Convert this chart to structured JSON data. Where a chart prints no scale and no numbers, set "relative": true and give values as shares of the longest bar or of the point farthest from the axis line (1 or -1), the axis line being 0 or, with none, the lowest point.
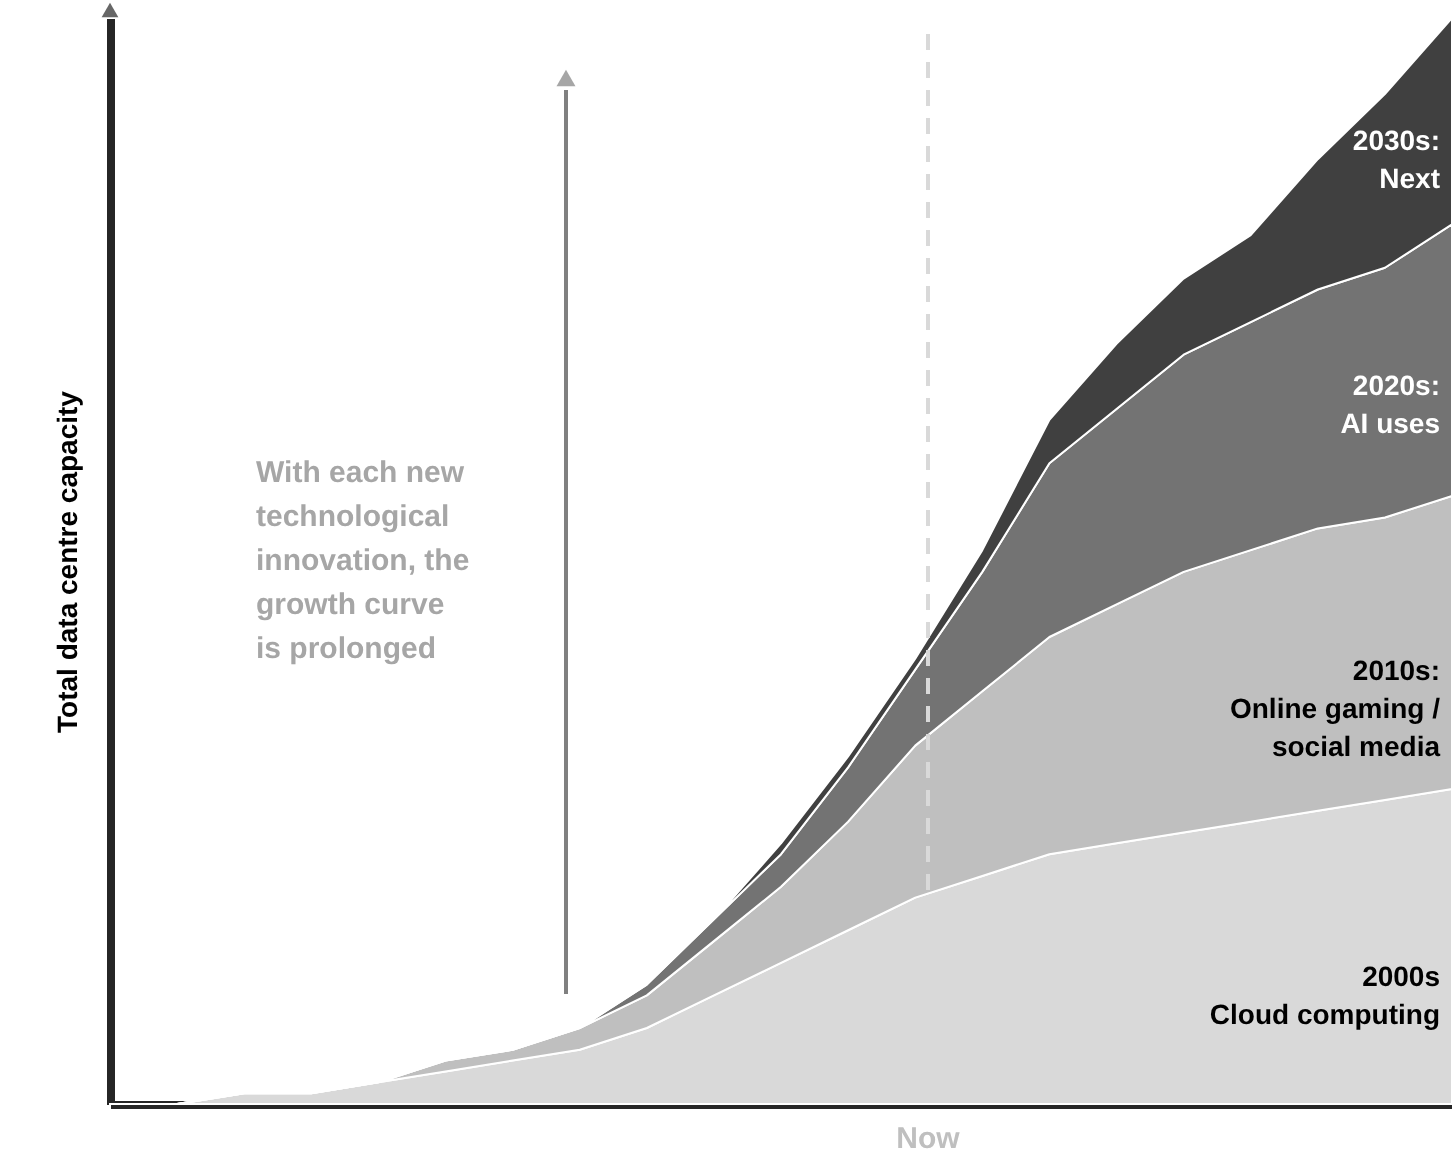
{
  "chart_data": {
    "type": "area",
    "stacked": true,
    "relative": true,
    "ylabel": "Total data centre capacity",
    "categories": [
      null,
      null,
      null,
      null,
      null,
      null,
      null,
      null,
      null,
      null,
      null,
      null,
      null,
      null,
      null,
      null,
      null,
      null,
      null,
      null,
      null
    ],
    "series": [
      {
        "name": "2000s\nCloud computing",
        "color": "#d9d9d9",
        "values": [
          0,
          0,
          0.01,
          0.01,
          0.02,
          0.03,
          0.04,
          0.05,
          0.07,
          0.1,
          0.13,
          0.16,
          0.19,
          0.21,
          0.23,
          0.24,
          0.25,
          0.26,
          0.27,
          0.28,
          0.29
        ]
      },
      {
        "name": "2010s:\nOnline gaming /\nsocial media",
        "color": "#bfbfbf",
        "values": [
          0,
          0,
          0,
          0,
          0,
          0.01,
          0.01,
          0.02,
          0.03,
          0.05,
          0.07,
          0.1,
          0.14,
          0.17,
          0.2,
          0.22,
          0.24,
          0.25,
          0.26,
          0.26,
          0.27
        ]
      },
      {
        "name": "2020s:\nAI uses",
        "color": "#737373",
        "values": [
          0,
          0,
          0,
          0,
          0,
          0,
          0,
          0,
          0.01,
          0.02,
          0.03,
          0.05,
          0.07,
          0.11,
          0.16,
          0.18,
          0.2,
          0.21,
          0.22,
          0.23,
          0.25
        ]
      },
      {
        "name": "2030s:\nNext",
        "color": "#404040",
        "values": [
          0,
          0,
          0,
          0,
          0,
          0,
          0,
          0,
          0,
          0,
          0.01,
          0.01,
          0.01,
          0.02,
          0.04,
          0.06,
          0.07,
          0.08,
          0.12,
          0.16,
          0.19
        ]
      }
    ],
    "annotations": [
      "With each new\ntechnological\ninnovation, the\ngrowth curve\nis prolonged",
      "Now"
    ]
  }
}
